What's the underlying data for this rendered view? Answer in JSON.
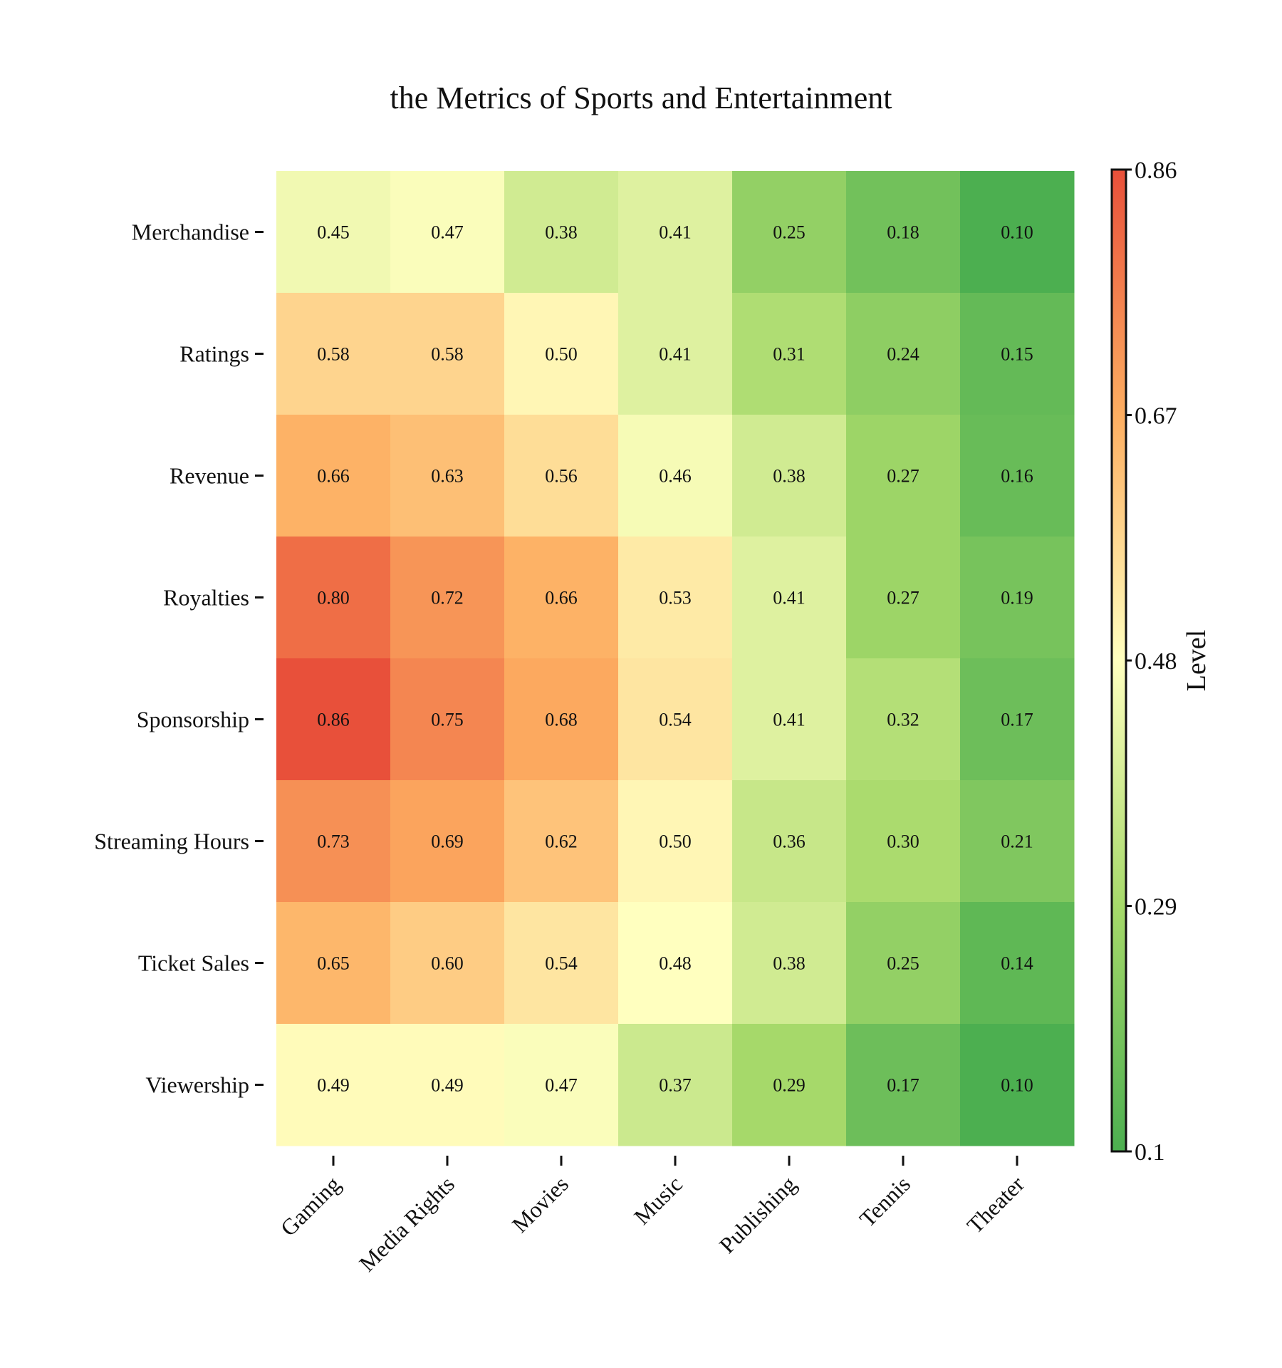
{
  "chart_data": {
    "type": "heatmap",
    "title": "the Metrics of Sports and Entertainment",
    "x_categories": [
      "Gaming",
      "Media Rights",
      "Movies",
      "Music",
      "Publishing",
      "Tennis",
      "Theater"
    ],
    "y_categories": [
      "Merchandise",
      "Ratings",
      "Revenue",
      "Royalties",
      "Sponsorship",
      "Streaming Hours",
      "Ticket Sales",
      "Viewership"
    ],
    "values": [
      [
        0.45,
        0.47,
        0.38,
        0.41,
        0.25,
        0.18,
        0.1
      ],
      [
        0.58,
        0.58,
        0.5,
        0.41,
        0.31,
        0.24,
        0.15
      ],
      [
        0.66,
        0.63,
        0.56,
        0.46,
        0.38,
        0.27,
        0.16
      ],
      [
        0.8,
        0.72,
        0.66,
        0.53,
        0.41,
        0.27,
        0.19
      ],
      [
        0.86,
        0.75,
        0.68,
        0.54,
        0.41,
        0.32,
        0.17
      ],
      [
        0.73,
        0.69,
        0.62,
        0.5,
        0.36,
        0.3,
        0.21
      ],
      [
        0.65,
        0.6,
        0.54,
        0.48,
        0.38,
        0.25,
        0.14
      ],
      [
        0.49,
        0.49,
        0.47,
        0.37,
        0.29,
        0.17,
        0.1
      ]
    ],
    "value_format_decimals": 2,
    "colorbar": {
      "label": "Level",
      "min": 0.1,
      "max": 0.86,
      "ticks": [
        "0.1",
        "0.29",
        "0.48",
        "0.67",
        "0.86"
      ],
      "colormap": "RdYlGn_r",
      "colors": [
        "#4caf50",
        "#a6d96a",
        "#ffffbf",
        "#fdae61",
        "#e8503a"
      ]
    },
    "x_tick_rotation": "45-degree",
    "grid": false
  }
}
